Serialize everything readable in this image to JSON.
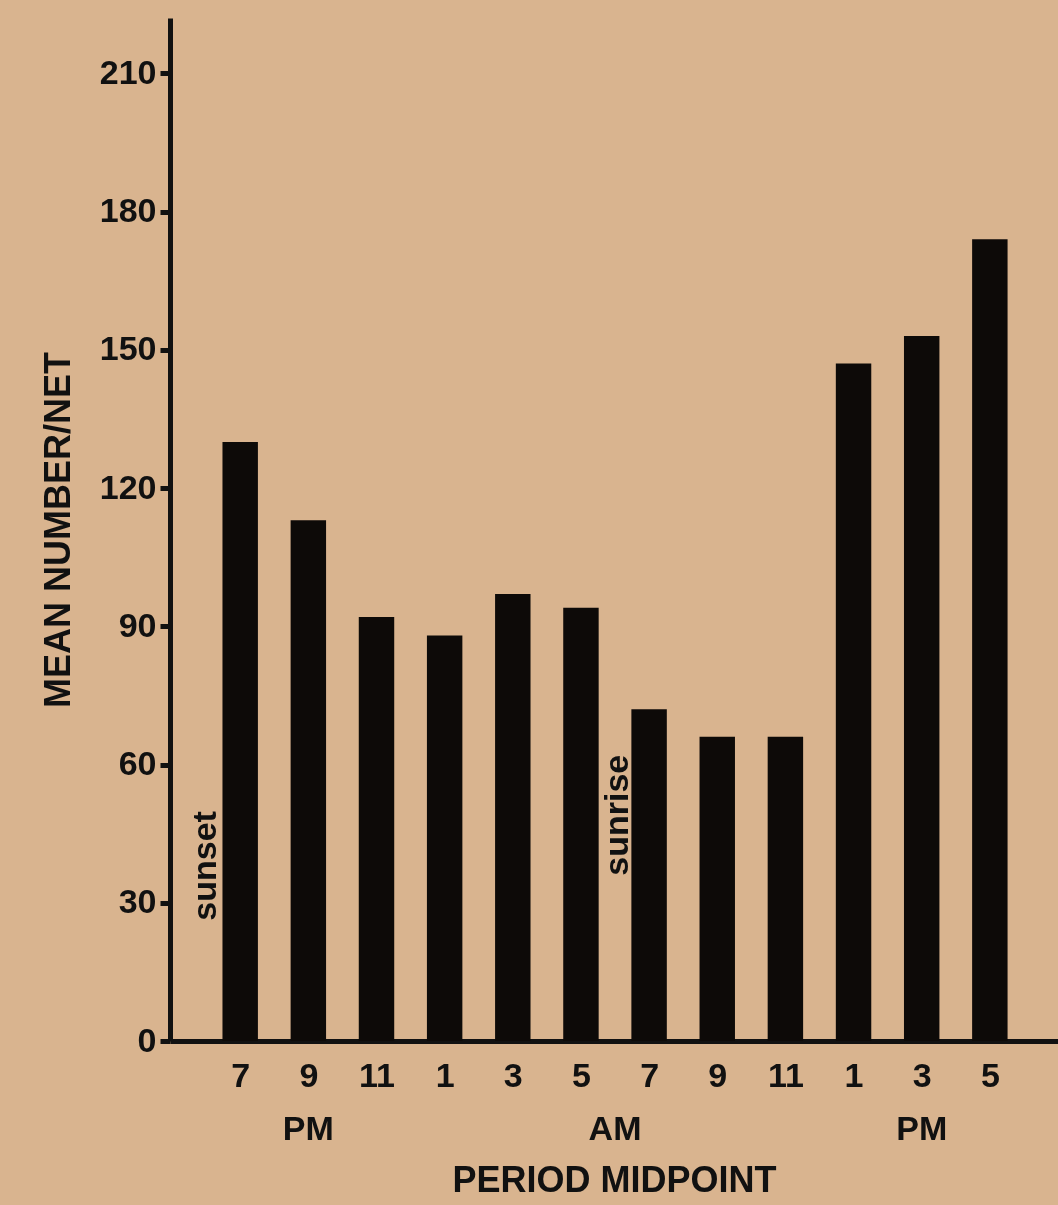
{
  "chart_data": {
    "type": "bar",
    "xlabel": "PERIOD MIDPOINT",
    "ylabel": "MEAN NUMBER/NET",
    "categories": [
      "7",
      "9",
      "11",
      "1",
      "3",
      "5",
      "7",
      "9",
      "11",
      "1",
      "3",
      "5"
    ],
    "values": [
      130,
      113,
      92,
      88,
      97,
      94,
      72,
      66,
      66,
      147,
      153,
      174
    ],
    "color": "#0d0a08",
    "ylim": [
      0,
      222
    ],
    "yticks": [
      0,
      30,
      60,
      90,
      120,
      150,
      180,
      210
    ],
    "annotations": [
      "PM",
      "AM",
      "PM",
      "sunset",
      "sunrise"
    ],
    "grid": false
  }
}
